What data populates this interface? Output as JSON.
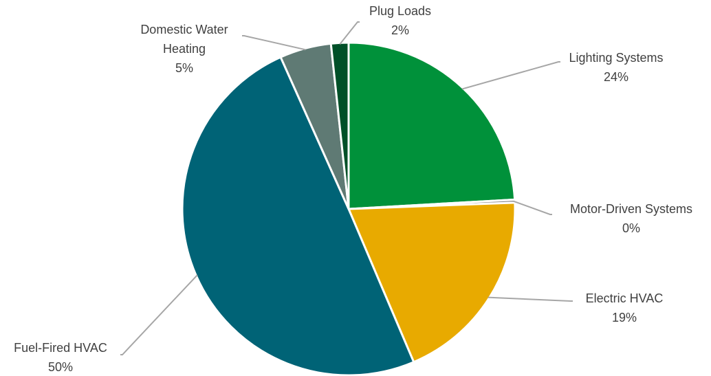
{
  "chart_data": {
    "type": "pie",
    "start_angle_deg": 0,
    "direction": "clockwise",
    "slices": [
      {
        "label": "Lighting Systems",
        "value": 24.1,
        "percent_label": "24%",
        "color": "#00913a"
      },
      {
        "label": "Motor-Driven Systems",
        "value": 0.3,
        "percent_label": "0%",
        "color": "#8c8c8c"
      },
      {
        "label": "Electric HVAC",
        "value": 19.2,
        "percent_label": "19%",
        "color": "#e8aa00"
      },
      {
        "label": "Fuel-Fired HVAC",
        "value": 49.7,
        "percent_label": "50%",
        "color": "#006376"
      },
      {
        "label": "Domestic Water Heating",
        "value": 5.0,
        "percent_label": "5%",
        "color": "#5f7a74"
      },
      {
        "label": "Plug Loads",
        "value": 1.7,
        "percent_label": "2%",
        "color": "#005028"
      }
    ],
    "legend": "none",
    "title": ""
  }
}
